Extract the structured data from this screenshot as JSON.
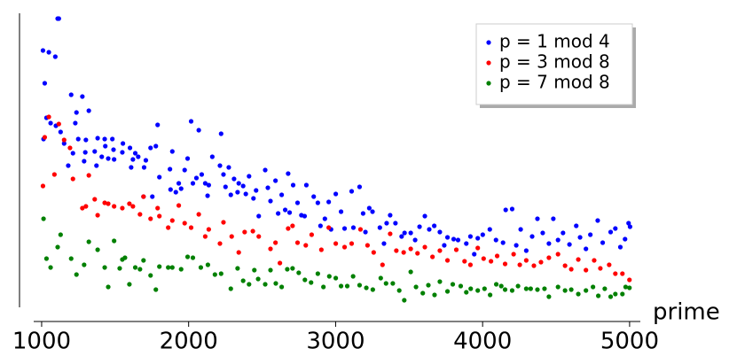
{
  "chart_data": {
    "type": "scatter",
    "x_label": "prime",
    "xlim": [
      946,
      5073
    ],
    "xticks": [
      1000,
      2000,
      3000,
      4000,
      5000
    ],
    "ylim": [
      0,
      332
    ],
    "legend": "upper right",
    "series": [
      {
        "name": "p = 1 mod 4",
        "color": "#0000ff",
        "x": [
          1009,
          1013,
          1021,
          1033,
          1049,
          1061,
          1093,
          1097,
          1109,
          1117,
          1129,
          1153,
          1181,
          1201,
          1213,
          1229,
          1237,
          1249,
          1277,
          1289,
          1297,
          1301,
          1321,
          1361,
          1373,
          1381,
          1409,
          1429,
          1433,
          1453,
          1481,
          1489,
          1493,
          1549,
          1553,
          1601,
          1609,
          1621,
          1637,
          1657,
          1693,
          1697,
          1709,
          1741,
          1753,
          1777,
          1789,
          1801,
          1873,
          1877,
          1889,
          1913,
          1933,
          1949,
          1973,
          1993,
          2017,
          2029,
          2053,
          2069,
          2089,
          2113,
          2129,
          2137,
          2161,
          2213,
          2221,
          2237,
          2251,
          2273,
          2287,
          2309,
          2333,
          2341,
          2371,
          2389,
          2411,
          2441,
          2459,
          2477,
          2521,
          2539,
          2557,
          2591,
          2609,
          2633,
          2657,
          2677,
          2687,
          2711,
          2741,
          2767,
          2789,
          2801,
          2851,
          2879,
          2897,
          2927,
          2953,
          2969,
          3001,
          3037,
          3061,
          3109,
          3121,
          3163,
          3187,
          3203,
          3229,
          3251,
          3301,
          3329,
          3347,
          3371,
          3407,
          3449,
          3469,
          3511,
          3541,
          3571,
          3607,
          3637,
          3671,
          3709,
          3739,
          3761,
          3803,
          3833,
          3889,
          3917,
          3943,
          3967,
          4001,
          4049,
          4091,
          4139,
          4157,
          4201,
          4229,
          4259,
          4297,
          4337,
          4373,
          4409,
          4451,
          4481,
          4513,
          4547,
          4591,
          4637,
          4663,
          4703,
          4733,
          4783,
          4817,
          4871,
          4903,
          4937,
          4969,
          4993,
          5003
        ],
        "values": [
          290,
          190,
          253,
          214,
          288,
          208,
          283,
          205,
          326,
          326,
          198,
          185,
          160,
          240,
          174,
          208,
          220,
          190,
          238,
          165,
          175,
          189,
          222,
          176,
          160,
          191,
          170,
          190,
          182,
          168,
          190,
          178,
          167,
          175,
          185,
          180,
          158,
          167,
          174,
          170,
          125,
          158,
          166,
          180,
          125,
          182,
          206,
          147,
          156,
          133,
          176,
          130,
          140,
          134,
          155,
          168,
          210,
          140,
          146,
          200,
          150,
          140,
          126,
          138,
          170,
          160,
          196,
          150,
          136,
          158,
          127,
          145,
          130,
          140,
          137,
          128,
          148,
          123,
          132,
          103,
          155,
          135,
          120,
          143,
          106,
          127,
          110,
          151,
          107,
          138,
          118,
          104,
          103,
          138,
          125,
          118,
          92,
          100,
          119,
          88,
          128,
          108,
          89,
          131,
          90,
          136,
          106,
          85,
          112,
          108,
          90,
          72,
          95,
          104,
          95,
          80,
          84,
          84,
          76,
          91,
          103,
          88,
          92,
          85,
          70,
          79,
          77,
          76,
          72,
          80,
          60,
          78,
          82,
          88,
          76,
          73,
          110,
          111,
          70,
          88,
          64,
          80,
          100,
          84,
          72,
          100,
          76,
          84,
          71,
          92,
          79,
          66,
          82,
          98,
          73,
          85,
          89,
          68,
          77,
          95,
          91
        ]
      },
      {
        "name": "p = 3 mod 8",
        "color": "#ff0000",
        "x": [
          1009,
          1021,
          1049,
          1087,
          1117,
          1153,
          1193,
          1213,
          1277,
          1301,
          1321,
          1361,
          1381,
          1429,
          1453,
          1493,
          1549,
          1597,
          1621,
          1669,
          1693,
          1741,
          1789,
          1801,
          1861,
          1889,
          1933,
          1973,
          2017,
          2069,
          2113,
          2137,
          2213,
          2237,
          2293,
          2341,
          2381,
          2437,
          2477,
          2557,
          2591,
          2621,
          2677,
          2707,
          2741,
          2797,
          2837,
          2903,
          2953,
          3001,
          3061,
          3109,
          3169,
          3217,
          3259,
          3319,
          3371,
          3413,
          3463,
          3511,
          3557,
          3607,
          3659,
          3709,
          3761,
          3821,
          3877,
          3917,
          3967,
          4007,
          4057,
          4099,
          4153,
          4211,
          4253,
          4297,
          4349,
          4397,
          4451,
          4513,
          4561,
          4603,
          4651,
          4703,
          4759,
          4801,
          4861,
          4903,
          4951,
          4999
        ],
        "values": [
          137,
          192,
          215,
          150,
          207,
          189,
          180,
          145,
          112,
          114,
          149,
          122,
          104,
          118,
          117,
          114,
          112,
          117,
          114,
          105,
          125,
          100,
          112,
          103,
          90,
          98,
          115,
          95,
          90,
          105,
          80,
          88,
          72,
          96,
          80,
          62,
          85,
          86,
          80,
          66,
          73,
          50,
          89,
          92,
          73,
          70,
          82,
          65,
          90,
          72,
          68,
          72,
          88,
          70,
          62,
          48,
          83,
          64,
          62,
          66,
          61,
          68,
          57,
          64,
          53,
          65,
          52,
          48,
          67,
          55,
          52,
          58,
          49,
          60,
          48,
          53,
          47,
          51,
          56,
          60,
          47,
          43,
          54,
          42,
          53,
          44,
          48,
          38,
          38,
          31
        ]
      },
      {
        "name": "p = 7 mod 8",
        "color": "#008000",
        "x": [
          1013,
          1033,
          1061,
          1109,
          1129,
          1201,
          1237,
          1289,
          1321,
          1381,
          1429,
          1453,
          1493,
          1531,
          1549,
          1567,
          1597,
          1637,
          1669,
          1693,
          1741,
          1777,
          1801,
          1861,
          1889,
          1949,
          1993,
          2029,
          2083,
          2131,
          2179,
          2221,
          2287,
          2333,
          2371,
          2411,
          2447,
          2473,
          2521,
          2557,
          2593,
          2633,
          2671,
          2707,
          2749,
          2791,
          2833,
          2879,
          2917,
          2957,
          3001,
          3037,
          3079,
          3119,
          3163,
          3209,
          3253,
          3307,
          3343,
          3389,
          3433,
          3467,
          3511,
          3547,
          3593,
          3631,
          3673,
          3709,
          3761,
          3797,
          3851,
          3889,
          3919,
          3967,
          4013,
          4051,
          4093,
          4127,
          4153,
          4201,
          4241,
          4297,
          4327,
          4373,
          4421,
          4451,
          4513,
          4561,
          4603,
          4651,
          4703,
          4751,
          4787,
          4831,
          4871,
          4903,
          4951,
          4973,
          4999
        ],
        "values": [
          100,
          55,
          45,
          68,
          82,
          55,
          37,
          48,
          74,
          65,
          45,
          23,
          75,
          44,
          54,
          56,
          26,
          45,
          43,
          53,
          36,
          20,
          46,
          45,
          45,
          43,
          57,
          56,
          45,
          48,
          37,
          38,
          21,
          44,
          30,
          26,
          42,
          32,
          26,
          42,
          27,
          23,
          43,
          44,
          39,
          31,
          28,
          38,
          23,
          35,
          33,
          24,
          24,
          35,
          25,
          22,
          20,
          33,
          27,
          27,
          19,
          8,
          40,
          23,
          16,
          25,
          14,
          29,
          18,
          26,
          24,
          17,
          21,
          19,
          21,
          14,
          26,
          24,
          20,
          19,
          24,
          21,
          21,
          20,
          21,
          12,
          23,
          19,
          20,
          15,
          19,
          23,
          13,
          21,
          12,
          15,
          15,
          23,
          22
        ]
      }
    ]
  }
}
